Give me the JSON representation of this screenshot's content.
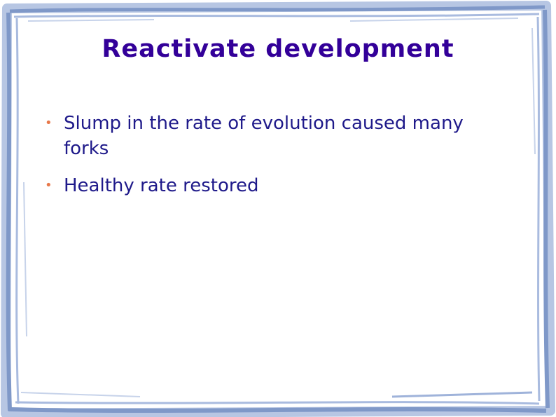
{
  "slide": {
    "title": "Reactivate development",
    "bullets": [
      {
        "text": "Slump in the rate of evolution caused many forks"
      },
      {
        "text": "Healthy rate restored"
      }
    ]
  },
  "colors": {
    "title": "#330099",
    "bullet_text": "#1f1a8a",
    "bullet_marker": "#e8784a",
    "frame": "#8aa3cf"
  }
}
